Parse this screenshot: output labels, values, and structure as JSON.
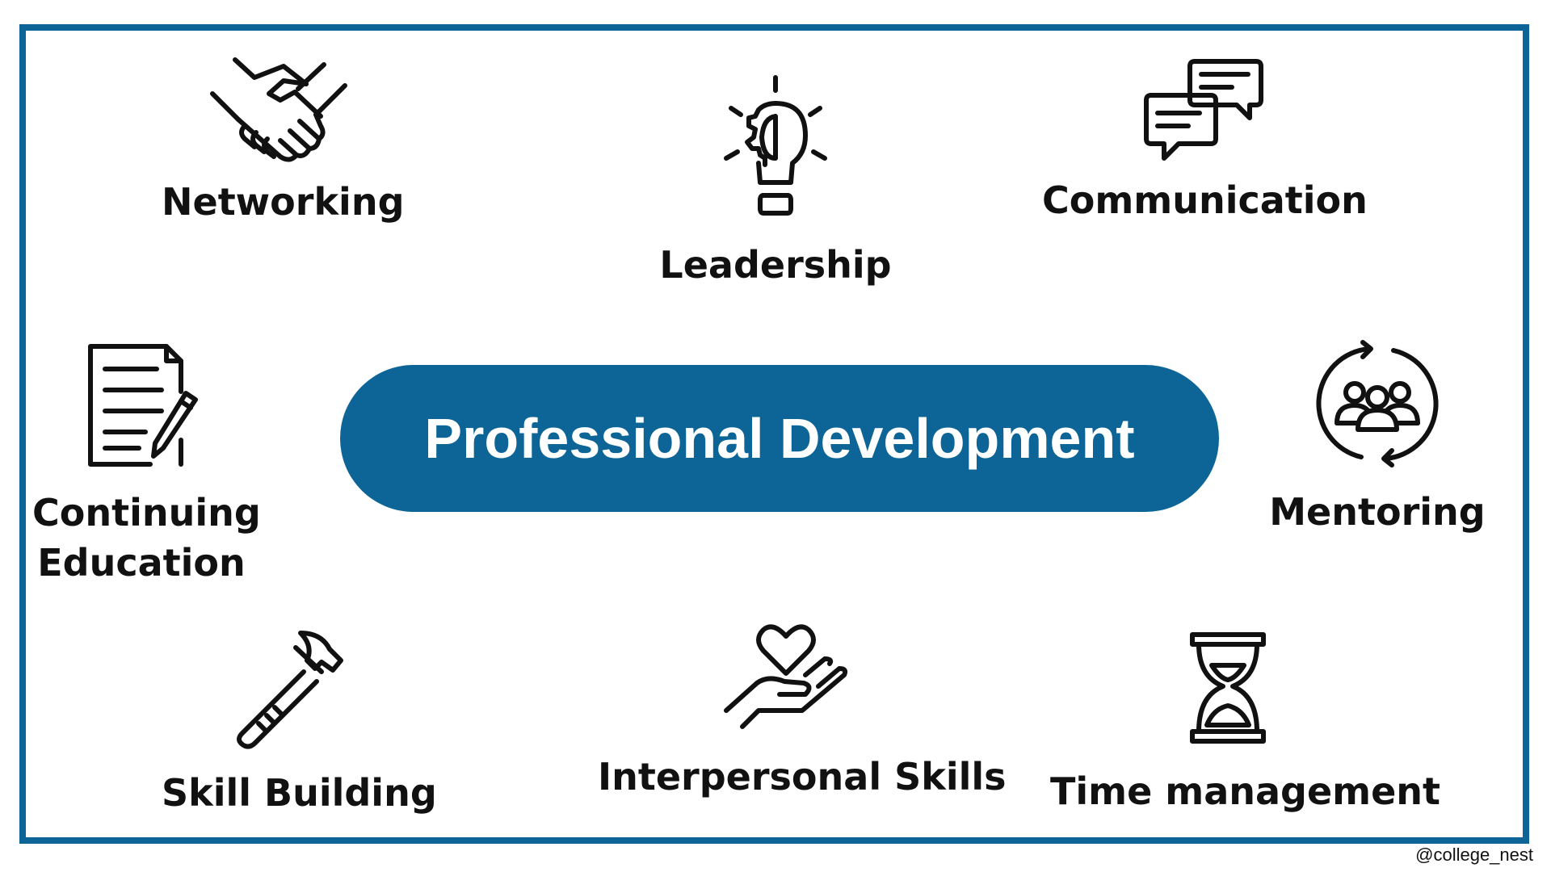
{
  "colors": {
    "frame": "#0c6596",
    "center_fill": "#0c6596",
    "center_text": "#ffffff",
    "icon_stroke": "#111111"
  },
  "center": {
    "title": "Professional Development"
  },
  "nodes": {
    "networking": {
      "label": "Networking",
      "icon": "handshake-icon"
    },
    "leadership": {
      "label": "Leadership",
      "icon": "lightbulb-gear-icon"
    },
    "communication": {
      "label": "Communication",
      "icon": "chat-bubbles-icon"
    },
    "continuing_education": {
      "label_line1": "Continuing",
      "label_line2": "Education",
      "icon": "document-pencil-icon"
    },
    "mentoring": {
      "label": "Mentoring",
      "icon": "group-cycle-icon"
    },
    "skill_building": {
      "label": "Skill Building",
      "icon": "hammer-icon"
    },
    "interpersonal_skills": {
      "label": "Interpersonal Skills",
      "icon": "heart-hand-icon"
    },
    "time_management": {
      "label": "Time management",
      "icon": "hourglass-icon"
    }
  },
  "credit": "@college_nest"
}
